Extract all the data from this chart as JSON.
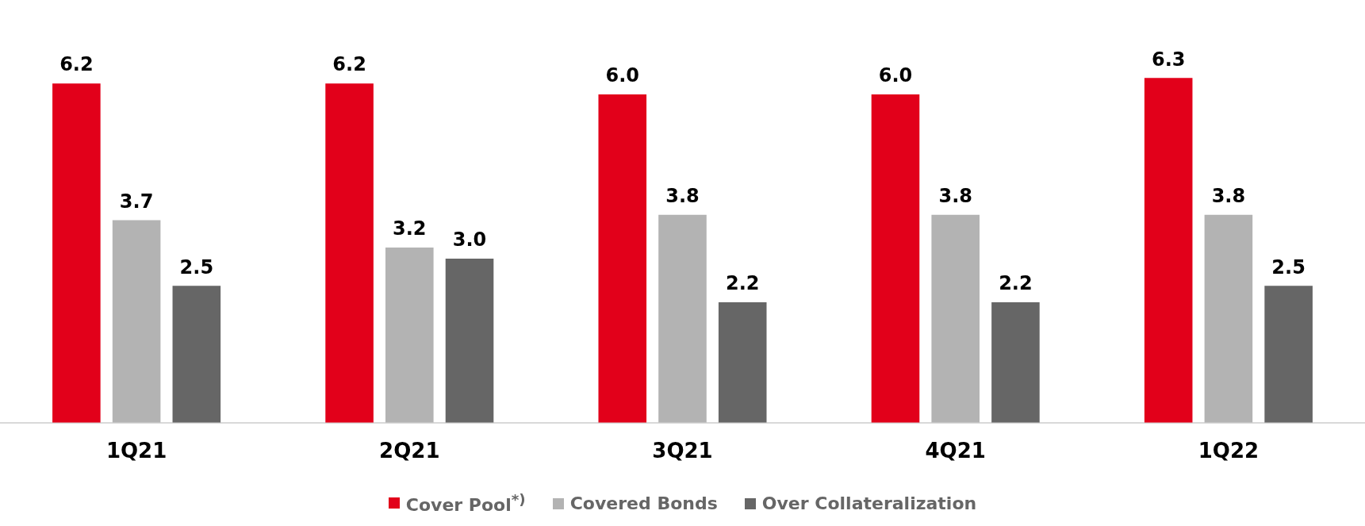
{
  "chart_data": {
    "type": "bar",
    "categories": [
      "1Q21",
      "2Q21",
      "3Q21",
      "4Q21",
      "1Q22"
    ],
    "series": [
      {
        "name": "Cover Pool$^{*)}$",
        "color": "#e2001a",
        "values": [
          6.2,
          6.2,
          6.0,
          6.0,
          6.3
        ],
        "value_labels": [
          "6.2",
          "6.2",
          "6.0",
          "6.0",
          "6.3"
        ]
      },
      {
        "name": "Covered Bonds",
        "color": "#b3b3b3",
        "values": [
          3.7,
          3.2,
          3.8,
          3.8,
          3.8
        ],
        "value_labels": [
          "3.7",
          "3.2",
          "3.8",
          "3.8",
          "3.8"
        ]
      },
      {
        "name": "Over Collateralization",
        "color": "#666666",
        "values": [
          2.5,
          3.0,
          2.2,
          2.2,
          2.5
        ],
        "value_labels": [
          "2.5",
          "3.0",
          "2.2",
          "2.2",
          "2.5"
        ]
      }
    ],
    "grid": false,
    "legend": "bottom"
  }
}
